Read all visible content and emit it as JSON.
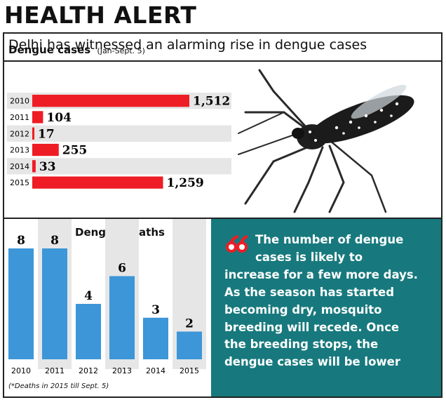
{
  "header": {
    "title": "HEALTH ALERT",
    "subtitle": "Delhi has witnessed an alarming rise in dengue cases"
  },
  "colors": {
    "bar_red": "#ee1c24",
    "bar_blue": "#3c96d8",
    "teal": "#17797d",
    "stripe": "#e6e6e6"
  },
  "chart_data": [
    {
      "type": "bar",
      "orientation": "horizontal",
      "title": "Dengue cases",
      "subtitle": "(Jan-Sept. 5)",
      "categories": [
        "2010",
        "2011",
        "2012",
        "2013",
        "2014",
        "2015"
      ],
      "values": [
        1512,
        104,
        17,
        255,
        33,
        1259
      ],
      "value_labels": [
        "1,512",
        "104",
        "17",
        "255",
        "33",
        "1,259"
      ],
      "color": "#ee1c24"
    },
    {
      "type": "bar",
      "orientation": "vertical",
      "title": "Dengue deaths",
      "categories": [
        "2010",
        "2011",
        "2012",
        "2013",
        "2014",
        "2015"
      ],
      "values": [
        8,
        8,
        4,
        6,
        3,
        2
      ],
      "value_labels": [
        "8",
        "8",
        "4",
        "6",
        "3",
        "2"
      ],
      "note": "(*Deaths in 2015 till Sept. 5)",
      "color": "#3c96d8"
    }
  ],
  "quote": {
    "icon": "quote-mark-icon",
    "lines": [
      "The number of dengue",
      "cases is likely to",
      "increase for a few more days.",
      "As the season has started",
      "becoming dry, mosquito",
      "breeding will recede. Once",
      "the breeding stops, the",
      "dengue cases will be lower"
    ]
  },
  "image": {
    "subject": "mosquito-illustration"
  }
}
